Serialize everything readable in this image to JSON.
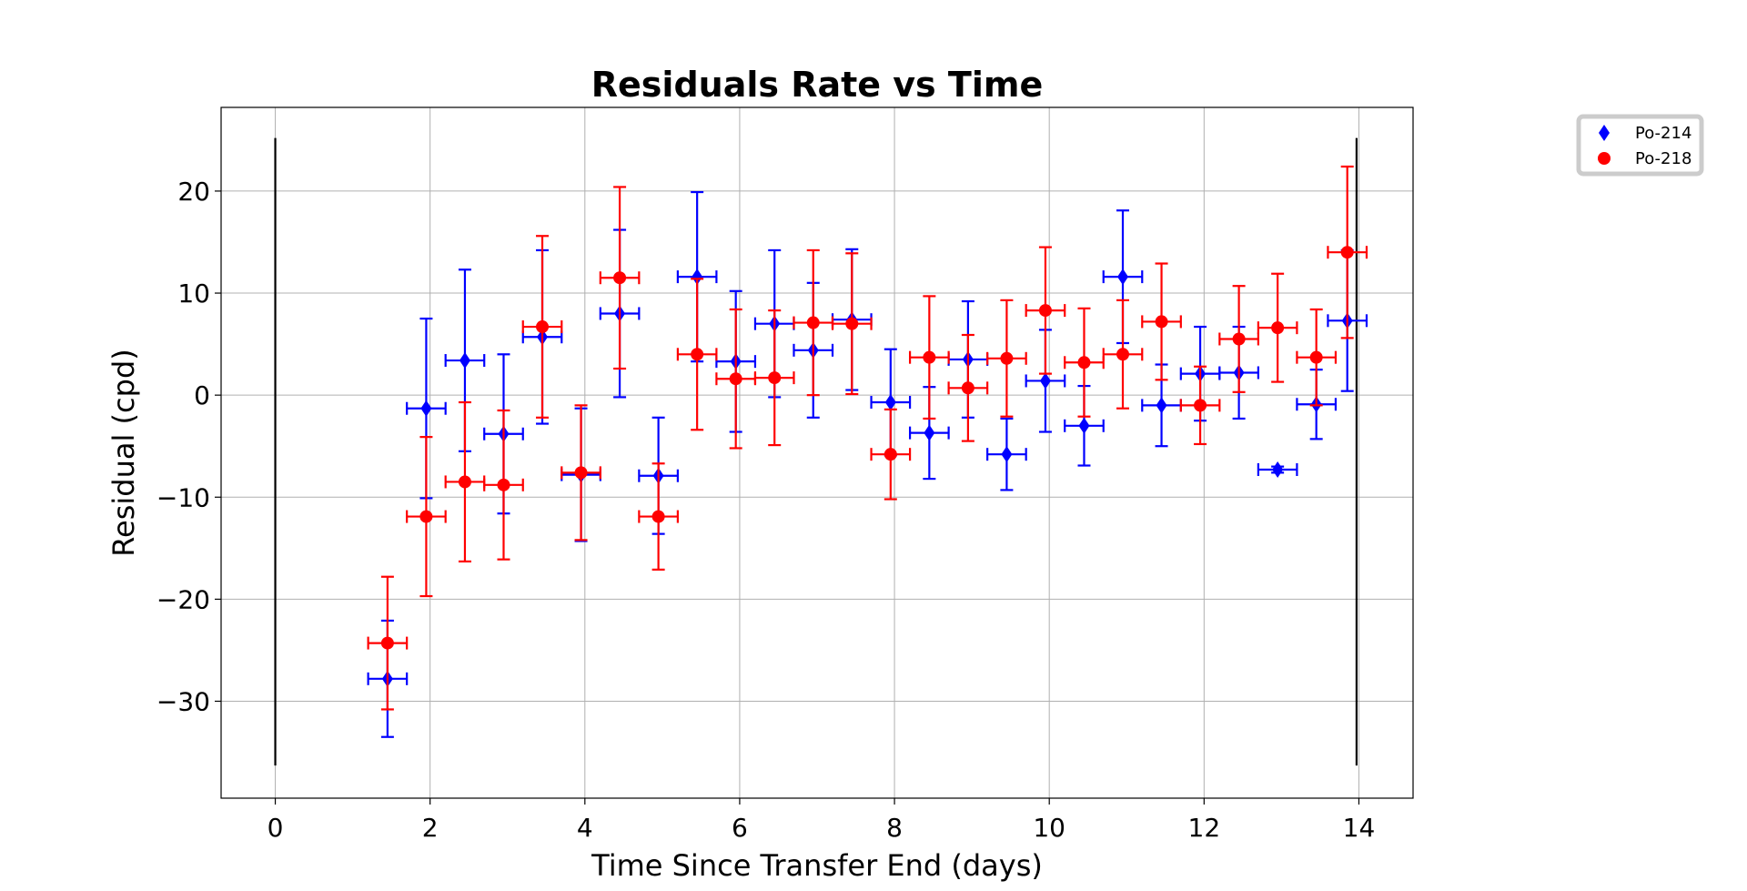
{
  "chart_data": {
    "type": "scatter",
    "title": "Residuals Rate vs Time",
    "xlabel": "Time Since Transfer End (days)",
    "ylabel": "Residual (cpd)",
    "xlim": [
      -0.7,
      14.7
    ],
    "ylim": [
      -39.5,
      28.2
    ],
    "xticks": [
      0,
      2,
      4,
      6,
      8,
      10,
      12,
      14
    ],
    "xtick_labels": [
      "0",
      "2",
      "4",
      "6",
      "8",
      "10",
      "12",
      "14"
    ],
    "yticks": [
      20,
      10,
      0,
      -10,
      -20,
      -30
    ],
    "ytick_labels": [
      "20",
      "10",
      "0",
      "−10",
      "−20",
      "−30"
    ],
    "grid": true,
    "legend_position": "outside top-right",
    "x_error_halfwidth": 0.25,
    "vertical_lines": [
      {
        "x": 0,
        "ymin": -36.3,
        "ymax": 25.2,
        "color": "#000000"
      },
      {
        "x": 13.97,
        "ymin": -36.3,
        "ymax": 25.2,
        "color": "#000000"
      }
    ],
    "series": [
      {
        "name": "Po-214",
        "color": "#0000ff",
        "marker": "diamond",
        "x": [
          1.45,
          1.95,
          2.45,
          2.95,
          3.45,
          3.95,
          4.45,
          4.95,
          5.45,
          5.95,
          6.45,
          6.95,
          7.45,
          7.95,
          8.45,
          8.95,
          9.45,
          9.95,
          10.45,
          10.95,
          11.45,
          11.95,
          12.45,
          12.95,
          13.45,
          13.85
        ],
        "y": [
          -27.8,
          -1.3,
          3.4,
          -3.8,
          5.7,
          -7.8,
          8.0,
          -7.9,
          11.6,
          3.3,
          7.0,
          4.4,
          7.4,
          -0.7,
          -3.7,
          3.5,
          -5.8,
          1.4,
          -3.0,
          11.6,
          -1.0,
          2.1,
          2.2,
          -7.3,
          -0.9,
          7.3
        ],
        "yerr": [
          5.7,
          8.8,
          8.9,
          7.8,
          8.5,
          6.5,
          8.2,
          5.7,
          8.3,
          6.9,
          7.2,
          6.6,
          6.9,
          5.2,
          4.5,
          5.7,
          3.5,
          5.0,
          3.9,
          6.5,
          4.0,
          4.6,
          4.5,
          0.3,
          3.4,
          6.9
        ]
      },
      {
        "name": "Po-218",
        "color": "#ff0000",
        "marker": "circle",
        "x": [
          1.45,
          1.95,
          2.45,
          2.95,
          3.45,
          3.95,
          4.45,
          4.95,
          5.45,
          5.95,
          6.45,
          6.95,
          7.45,
          7.95,
          8.45,
          8.95,
          9.45,
          9.95,
          10.45,
          10.95,
          11.45,
          11.95,
          12.45,
          12.95,
          13.45,
          13.85
        ],
        "y": [
          -24.3,
          -11.9,
          -8.5,
          -8.8,
          6.7,
          -7.6,
          11.5,
          -11.9,
          4.0,
          1.6,
          1.7,
          7.1,
          7.0,
          -5.8,
          3.7,
          0.7,
          3.6,
          8.3,
          3.2,
          4.0,
          7.2,
          -1.0,
          5.5,
          6.6,
          3.7,
          14.0
        ],
        "yerr": [
          6.5,
          7.8,
          7.8,
          7.3,
          8.9,
          6.6,
          8.9,
          5.2,
          7.4,
          6.8,
          6.6,
          7.1,
          6.9,
          4.4,
          6.0,
          5.2,
          5.7,
          6.2,
          5.3,
          5.3,
          5.7,
          3.8,
          5.2,
          5.3,
          4.7,
          8.4
        ]
      }
    ]
  }
}
